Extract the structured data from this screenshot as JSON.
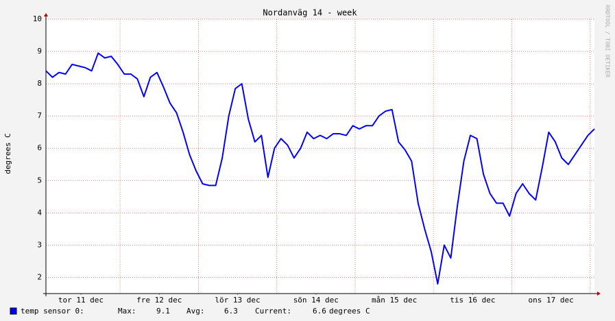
{
  "chart_data": {
    "type": "line",
    "title": "Nordanväg 14 - week",
    "ylabel": "degrees C",
    "watermark": "RRDTOOL / TOBI OETIKER",
    "xlim": [
      0,
      168
    ],
    "xticks": [
      {
        "value": 10.7,
        "label": "tor 11 dec"
      },
      {
        "value": 34.7,
        "label": "fre 12 dec"
      },
      {
        "value": 58.7,
        "label": "lör 13 dec"
      },
      {
        "value": 82.7,
        "label": "sön 14 dec"
      },
      {
        "value": 106.7,
        "label": "mån 15 dec"
      },
      {
        "value": 130.7,
        "label": "tis 16 dec"
      },
      {
        "value": 154.7,
        "label": "ons 17 dec"
      }
    ],
    "xgrid": [
      22.7,
      46.7,
      70.7,
      94.7,
      118.7,
      142.7,
      166.7
    ],
    "ylim": [
      1.5,
      10
    ],
    "yticks": [
      2,
      3,
      4,
      5,
      6,
      7,
      8,
      9,
      10
    ],
    "grid": true,
    "x": [
      0,
      2,
      4,
      6,
      8,
      10,
      12,
      14,
      16,
      18,
      20,
      22,
      24,
      26,
      28,
      30,
      32,
      34,
      36,
      38,
      40,
      42,
      44,
      46,
      48,
      50,
      52,
      54,
      56,
      58,
      60,
      62,
      64,
      66,
      68,
      70,
      72,
      74,
      76,
      78,
      80,
      82,
      84,
      86,
      88,
      90,
      92,
      94,
      96,
      98,
      100,
      102,
      104,
      106,
      108,
      110,
      112,
      114,
      116,
      118,
      120,
      122,
      124,
      126,
      128,
      130,
      132,
      134,
      136,
      138,
      140,
      142,
      144,
      146,
      148,
      150,
      152,
      154,
      156,
      158,
      160,
      162,
      164,
      166,
      168
    ],
    "series": [
      {
        "name": "temp sensor 0:",
        "color": "#0000ff",
        "values": [
          8.4,
          8.2,
          8.35,
          8.3,
          8.6,
          8.55,
          8.5,
          8.4,
          8.95,
          8.8,
          8.85,
          8.6,
          8.3,
          8.3,
          8.15,
          7.6,
          8.2,
          8.35,
          7.9,
          7.4,
          7.1,
          6.5,
          5.8,
          5.3,
          4.9,
          4.85,
          4.85,
          5.7,
          7.0,
          7.85,
          8.0,
          6.9,
          6.2,
          6.4,
          5.1,
          6.0,
          6.3,
          6.1,
          5.7,
          6.0,
          6.5,
          6.3,
          6.4,
          6.3,
          6.45,
          6.45,
          6.4,
          6.7,
          6.6,
          6.7,
          6.7,
          7.0,
          7.15,
          7.2,
          6.2,
          5.95,
          5.6,
          4.3,
          3.5,
          2.8,
          1.8,
          3.0,
          2.6,
          4.2,
          5.6,
          6.4,
          6.3,
          5.2,
          4.6,
          4.3,
          4.3,
          3.9,
          4.6,
          4.9,
          4.6,
          4.4,
          5.4,
          6.5,
          6.2,
          5.7,
          5.5,
          5.8,
          6.1,
          6.4,
          6.6
        ]
      }
    ],
    "legend": {
      "max_label": "Max:",
      "max": 9.1,
      "avg_label": "Avg:",
      "avg": 6.3,
      "current_label": "Current:",
      "current": 6.6,
      "unit": "degrees C"
    }
  }
}
